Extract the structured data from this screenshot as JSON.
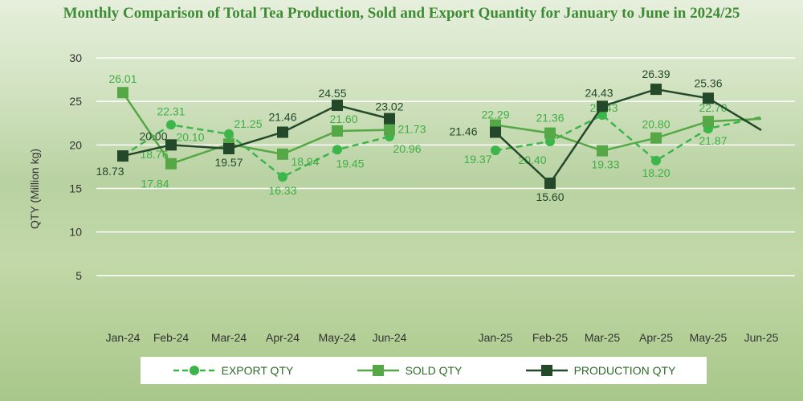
{
  "title": "Monthly Comparison of Total Tea Production, Sold and Export Quantity for January to June in 2024/25",
  "chart_data": {
    "type": "line",
    "title": "Monthly Comparison of Total Tea Production, Sold and Export Quantity for January to June in 2024/25",
    "ylabel": "QTY (Million kg)",
    "xlabel": "",
    "ylim": [
      0,
      30
    ],
    "yticks": [
      5,
      10,
      15,
      20,
      25,
      30
    ],
    "grid": true,
    "legend_position": "bottom",
    "categories": [
      "Jan-24",
      "Feb-24",
      "Mar-24",
      "Apr-24",
      "May-24",
      "Jun-24",
      "Jan-25",
      "Feb-25",
      "Mar-25",
      "Apr-25",
      "May-25",
      "Jun-25"
    ],
    "series": [
      {
        "name": "EXPORT QTY",
        "color": "#3cb54a",
        "style": "dashed",
        "marker": "circle",
        "values": [
          18.76,
          22.31,
          21.25,
          16.33,
          19.45,
          20.96,
          19.37,
          20.4,
          23.43,
          18.2,
          21.87,
          23.2
        ],
        "labels": [
          "18.76",
          "22.31",
          "21.25",
          "16.33",
          "19.45",
          "20.96",
          "19.37",
          "20.40",
          "23.43",
          "18.20",
          "21.87",
          ""
        ]
      },
      {
        "name": "SOLD QTY",
        "color": "#55a845",
        "style": "solid",
        "marker": "square",
        "values": [
          26.01,
          17.84,
          20.1,
          18.94,
          21.6,
          21.73,
          22.29,
          21.36,
          19.33,
          20.8,
          22.7,
          23.0
        ],
        "labels": [
          "26.01",
          "17.84",
          "20.10",
          "18.94",
          "21.60",
          "21.73",
          "22.29",
          "21.36",
          "19.33",
          "20.80",
          "22.70",
          ""
        ]
      },
      {
        "name": "PRODUCTION QTY",
        "color": "#24482a",
        "style": "solid",
        "marker": "square",
        "values": [
          18.73,
          20.0,
          19.57,
          21.46,
          24.55,
          23.02,
          21.46,
          15.6,
          24.43,
          26.39,
          25.36,
          21.7
        ],
        "labels": [
          "18.73",
          "20.00",
          "19.57",
          "21.46",
          "24.55",
          "23.02",
          "21.46",
          "15.60",
          "24.43",
          "26.39",
          "25.36",
          ""
        ]
      }
    ]
  }
}
